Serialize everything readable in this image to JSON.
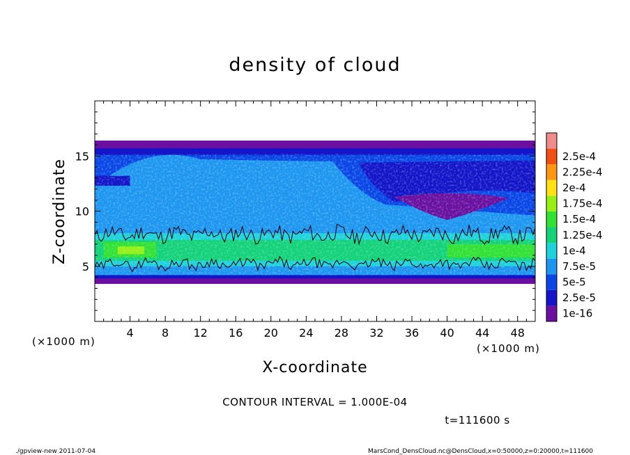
{
  "chart_data": {
    "type": "heatmap",
    "title": "density of cloud",
    "xlabel": "X-coordinate",
    "ylabel": "Z-coordinate",
    "x_unit": "(×1000 m)",
    "x_unit_right": "(×1000 m)",
    "xlim": [
      0,
      50
    ],
    "ylim": [
      0,
      20
    ],
    "x_ticks": [
      "4",
      "8",
      "12",
      "16",
      "20",
      "24",
      "28",
      "32",
      "36",
      "40",
      "44",
      "48"
    ],
    "y_ticks": [
      "5",
      "10",
      "15"
    ],
    "colorbar_labels": [
      "1e-16",
      "2.5e-5",
      "5e-5",
      "7.5e-5",
      "1e-4",
      "1.25e-4",
      "1.5e-4",
      "1.75e-4",
      "2e-4",
      "2.25e-4",
      "2.5e-4"
    ],
    "colorbar_colors": [
      "#6a0fa0",
      "#1414c8",
      "#0a46e6",
      "#1e96f0",
      "#1ed2dc",
      "#14d278",
      "#32e132",
      "#96f014",
      "#ffe114",
      "#ff9614",
      "#f05014",
      "#f08c8c"
    ],
    "contour_interval": "CONTOUR INTERVAL = 1.000E-04",
    "time_label": "t=111600 s",
    "footer_left": "./gpview-new  2011-07-04",
    "footer_right": "MarsCond_DensCloud.nc@DensCloud,x=0:50000,z=0:20000,t=111600"
  }
}
